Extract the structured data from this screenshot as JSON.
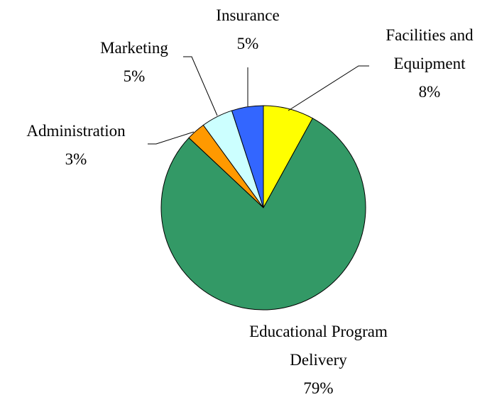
{
  "chart_data": {
    "type": "pie",
    "categories": [
      "Facilities and Equipment",
      "Educational Program Delivery",
      "Administration",
      "Marketing",
      "Insurance"
    ],
    "values": [
      8,
      79,
      3,
      5,
      5
    ],
    "value_labels": [
      "8%",
      "79%",
      "3%",
      "5%",
      "5%"
    ],
    "colors": [
      "#ffff00",
      "#339966",
      "#ff9900",
      "#ccffff",
      "#3366ff"
    ]
  }
}
